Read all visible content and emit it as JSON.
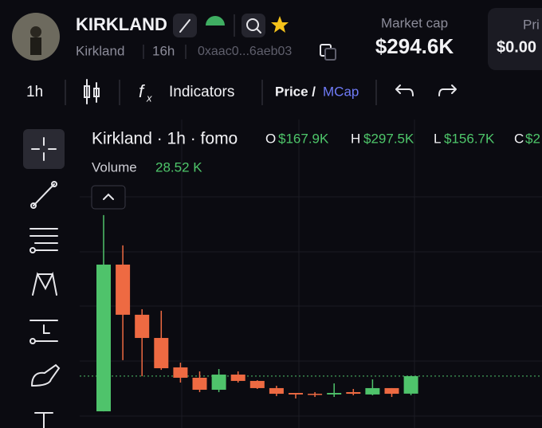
{
  "header": {
    "name": "KIRKLAND",
    "subname": "Kirkland",
    "age": "16h",
    "address": "0xaac0...6aeb03",
    "market_cap_label": "Market cap",
    "market_cap": "$294.6K",
    "price_label": "Pri",
    "price": "$0.00"
  },
  "toolbar": {
    "interval": "1h",
    "indicators": "Indicators",
    "price": "Price /",
    "mcap": "MCap"
  },
  "legend": {
    "open_label": "O",
    "open": "$167.9K",
    "high_label": "H",
    "high": "$297.5K",
    "low_label": "L",
    "low": "$156.7K",
    "close_label": "C",
    "close": "$2",
    "volume_label": "Volume",
    "volume": "28.52 K"
  },
  "chart_data": {
    "type": "candlestick",
    "title": "Kirkland · 1h · fomo",
    "ylim": [
      0,
      1800
    ],
    "up_color": "#4fc36b",
    "down_color": "#ee6a42",
    "open": [
      40,
      1102,
      739,
      571,
      358,
      283,
      196,
      306,
      260,
      208,
      173,
      167,
      162,
      179,
      162,
      208,
      167.9
    ],
    "high": [
      1460,
      1241,
      779,
      768,
      392,
      329,
      346,
      329,
      265,
      225,
      173,
      179,
      242,
      202,
      271,
      208,
      297.5
    ],
    "low": [
      40,
      410,
      294,
      340,
      248,
      179,
      179,
      248,
      202,
      150,
      133,
      144,
      144,
      156,
      156,
      144,
      156.7
    ],
    "close": [
      1102,
      739,
      571,
      352,
      283,
      196,
      306,
      260,
      208,
      167,
      162,
      162,
      173,
      167,
      208,
      167,
      294.6
    ]
  }
}
